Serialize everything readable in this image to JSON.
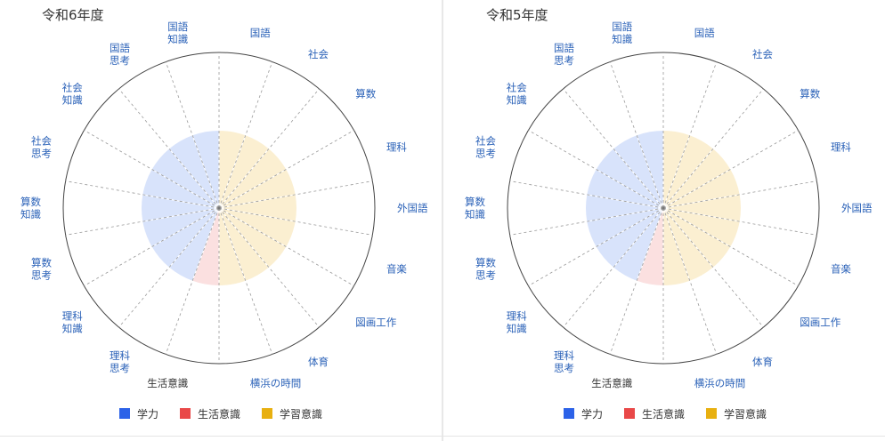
{
  "colors": {
    "学力": "#2c62e8",
    "生活意識": "#e94848",
    "学習意識": "#e8b010"
  },
  "chart_data": [
    {
      "type": "polar-area",
      "title": "令和6年度",
      "categories": [
        {
          "label": [
            "国語"
          ],
          "group": "学習意識"
        },
        {
          "label": [
            "社会"
          ],
          "group": "学習意識"
        },
        {
          "label": [
            "算数"
          ],
          "group": "学習意識"
        },
        {
          "label": [
            "理科"
          ],
          "group": "学習意識"
        },
        {
          "label": [
            "外国語"
          ],
          "group": "学習意識"
        },
        {
          "label": [
            "音楽"
          ],
          "group": "学習意識"
        },
        {
          "label": [
            "図画工作"
          ],
          "group": "学習意識"
        },
        {
          "label": [
            "体育"
          ],
          "group": "学習意識"
        },
        {
          "label": [
            "横浜の時間"
          ],
          "group": "学習意識"
        },
        {
          "label": [
            "生活意識"
          ],
          "group": "生活意識"
        },
        {
          "label": [
            "理科",
            "思考"
          ],
          "group": "学力"
        },
        {
          "label": [
            "理科",
            "知識"
          ],
          "group": "学力"
        },
        {
          "label": [
            "算数",
            "思考"
          ],
          "group": "学力"
        },
        {
          "label": [
            "算数",
            "知識"
          ],
          "group": "学力"
        },
        {
          "label": [
            "社会",
            "思考"
          ],
          "group": "学力"
        },
        {
          "label": [
            "社会",
            "知識"
          ],
          "group": "学力"
        },
        {
          "label": [
            "国語",
            "思考"
          ],
          "group": "学力"
        },
        {
          "label": [
            "国語",
            "知識"
          ],
          "group": "学力"
        }
      ],
      "legend": [
        "学力",
        "生活意識",
        "学習意識"
      ],
      "legend_position": "bottom"
    },
    {
      "type": "polar-area",
      "title": "令和5年度",
      "categories": [
        {
          "label": [
            "国語"
          ],
          "group": "学習意識"
        },
        {
          "label": [
            "社会"
          ],
          "group": "学習意識"
        },
        {
          "label": [
            "算数"
          ],
          "group": "学習意識"
        },
        {
          "label": [
            "理科"
          ],
          "group": "学習意識"
        },
        {
          "label": [
            "外国語"
          ],
          "group": "学習意識"
        },
        {
          "label": [
            "音楽"
          ],
          "group": "学習意識"
        },
        {
          "label": [
            "図画工作"
          ],
          "group": "学習意識"
        },
        {
          "label": [
            "体育"
          ],
          "group": "学習意識"
        },
        {
          "label": [
            "横浜の時間"
          ],
          "group": "学習意識"
        },
        {
          "label": [
            "生活意識"
          ],
          "group": "生活意識"
        },
        {
          "label": [
            "理科",
            "思考"
          ],
          "group": "学力"
        },
        {
          "label": [
            "理科",
            "知識"
          ],
          "group": "学力"
        },
        {
          "label": [
            "算数",
            "思考"
          ],
          "group": "学力"
        },
        {
          "label": [
            "算数",
            "知識"
          ],
          "group": "学力"
        },
        {
          "label": [
            "社会",
            "思考"
          ],
          "group": "学力"
        },
        {
          "label": [
            "社会",
            "知識"
          ],
          "group": "学力"
        },
        {
          "label": [
            "国語",
            "思考"
          ],
          "group": "学力"
        },
        {
          "label": [
            "国語",
            "知識"
          ],
          "group": "学力"
        }
      ],
      "legend": [
        "学力",
        "生活意識",
        "学習意識"
      ],
      "legend_position": "bottom"
    }
  ]
}
